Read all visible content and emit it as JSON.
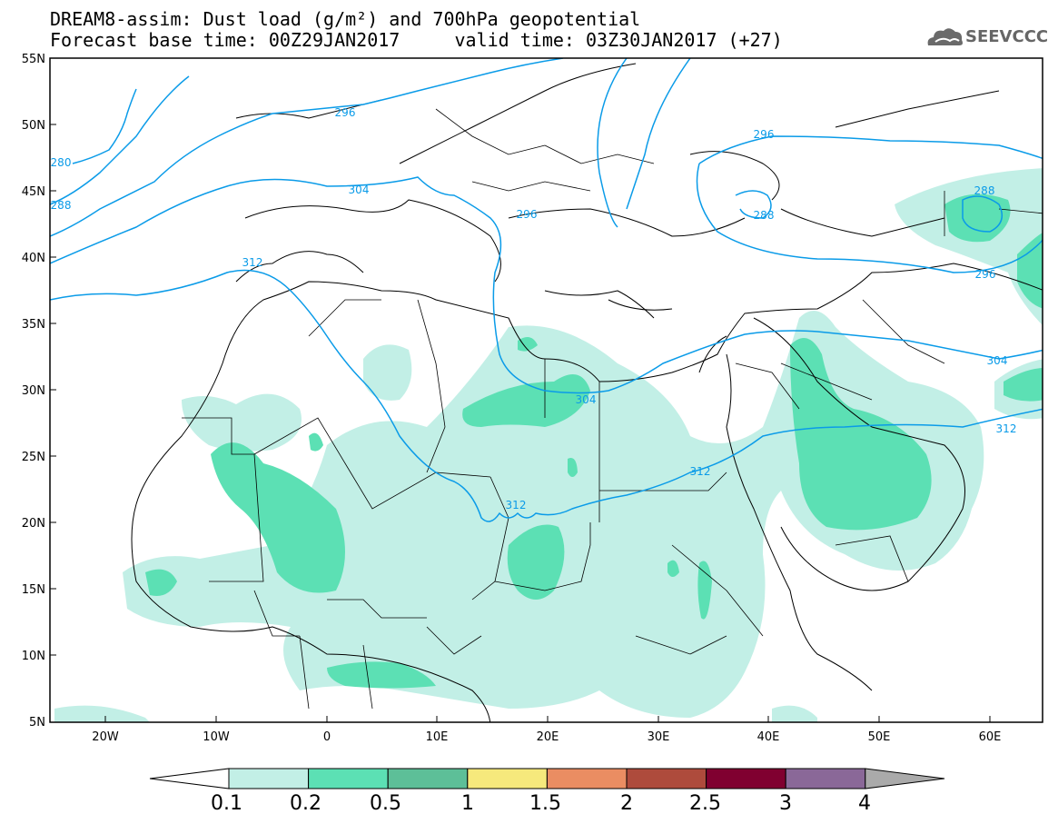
{
  "header": {
    "title_line1": "DREAM8-assim: Dust load (g/m²) and 700hPa geopotential",
    "title_line2": "Forecast base time: 00Z29JAN2017     valid time: 03Z30JAN2017 (+27)",
    "logo_text": "SEEVCCC"
  },
  "map": {
    "lat_labels": [
      "55N",
      "50N",
      "45N",
      "40N",
      "35N",
      "30N",
      "25N",
      "20N",
      "15N",
      "10N",
      "5N"
    ],
    "lon_labels": [
      "20W",
      "10W",
      "0",
      "10E",
      "20E",
      "30E",
      "40E",
      "50E",
      "60E"
    ],
    "contour_labels": [
      "280",
      "288",
      "296",
      "304",
      "312",
      "296",
      "288",
      "296",
      "304",
      "312",
      "304",
      "312",
      "288",
      "296"
    ]
  },
  "colorbar": {
    "labels": [
      "0.1",
      "0.2",
      "0.5",
      "1",
      "1.5",
      "2",
      "2.5",
      "3",
      "4"
    ],
    "colors": [
      "#ffffff",
      "#c2efe6",
      "#5ce0b4",
      "#5dbf98",
      "#f6e97c",
      "#ea8d62",
      "#ae4b3c",
      "#800030",
      "#8a6898",
      "#aaaaaa"
    ]
  }
}
